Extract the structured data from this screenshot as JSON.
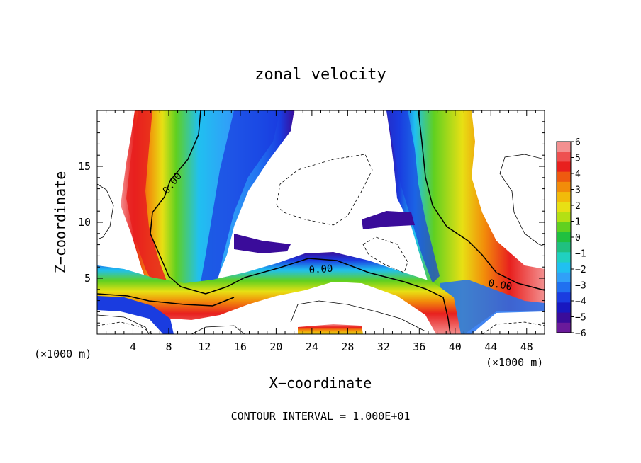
{
  "chart_data": {
    "type": "heatmap",
    "title": "zonal velocity",
    "xlabel": "X−coordinate",
    "ylabel": "Z−coordinate",
    "x_scale_note": "(×1000 m)",
    "z_scale_note": "(×1000 m)",
    "xlim": [
      0,
      50
    ],
    "zlim": [
      0,
      20
    ],
    "x_ticks": [
      4,
      8,
      12,
      16,
      20,
      24,
      28,
      32,
      36,
      40,
      44,
      48
    ],
    "z_ticks": [
      5,
      10,
      15
    ],
    "footer": "CONTOUR INTERVAL = 1.000E+01",
    "contour_labels": [
      "0.00",
      "0.00",
      "0.00"
    ],
    "colorbar": {
      "ticks": [
        "6",
        "5",
        "4",
        "3",
        "2",
        "1",
        "0",
        "−1",
        "−2",
        "−3",
        "−4",
        "−5",
        "−6"
      ],
      "colors": [
        "#f39090",
        "#ee5050",
        "#e8201e",
        "#ee5a10",
        "#f28c0a",
        "#f2bb0a",
        "#e8e014",
        "#b4e014",
        "#60d020",
        "#20c040",
        "#20c080",
        "#20d0c0",
        "#20c0f0",
        "#30a0f8",
        "#2070f0",
        "#1a3ce0",
        "#1818c0",
        "#3a0c9a",
        "#6a1a9a"
      ]
    },
    "colors": {
      "red": "#e82020",
      "orange": "#f28c0a",
      "yellow": "#e8e014",
      "green": "#40c830",
      "cyan": "#20c0f0",
      "blue": "#1a3ce0",
      "purple": "#5a0a9a"
    }
  }
}
